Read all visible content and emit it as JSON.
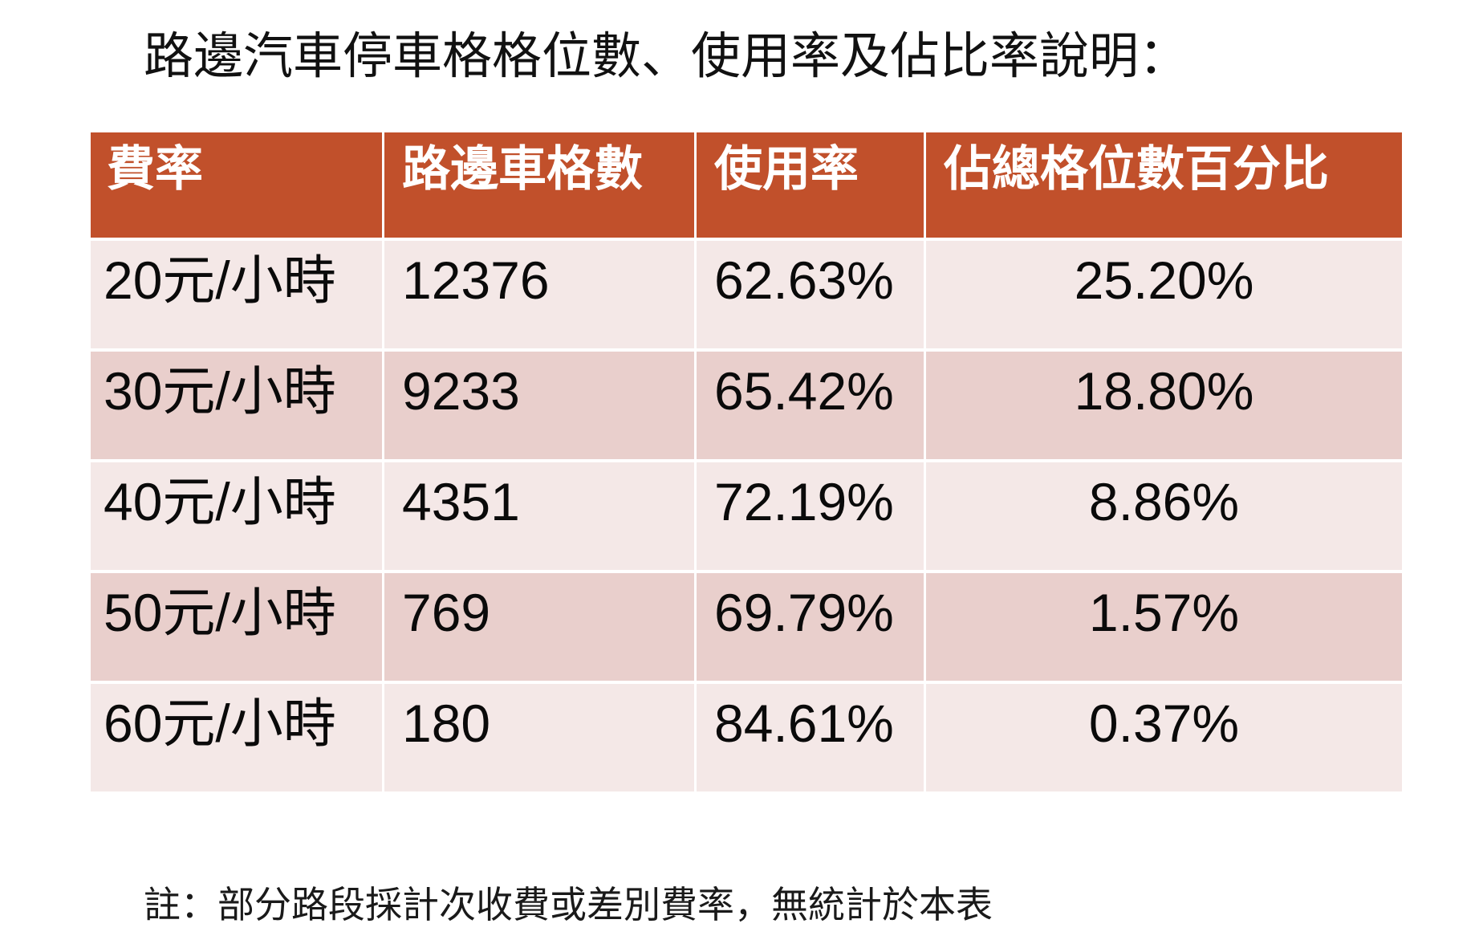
{
  "title": "路邊汽車停車格格位數、使用率及佔比率說明：",
  "table": {
    "headers": [
      "費率",
      "路邊車格數",
      "使用率",
      "佔總格位數百分比"
    ],
    "rows": [
      [
        "20元/小時",
        "12376",
        "62.63%",
        "25.20%"
      ],
      [
        "30元/小時",
        "9233",
        "65.42%",
        "18.80%"
      ],
      [
        "40元/小時",
        "4351",
        "72.19%",
        "8.86%"
      ],
      [
        "50元/小時",
        "769",
        "69.79%",
        "1.57%"
      ],
      [
        "60元/小時",
        "180",
        "84.61%",
        "0.37%"
      ]
    ]
  },
  "footnote": "註：部分路段採計次收費或差別費率，無統計於本表",
  "colors": {
    "header_bg": "#C1502B",
    "header_text": "#FFFFFF",
    "row_odd_bg": "#E9CFCC",
    "row_even_bg": "#F4E8E7",
    "text": "#000000"
  }
}
